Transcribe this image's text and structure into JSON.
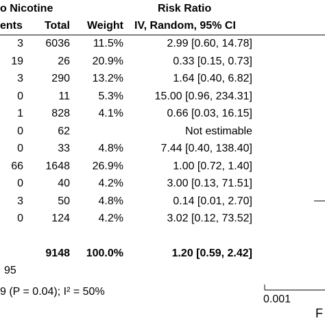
{
  "header": {
    "group_title": "o Nicotine",
    "risk_ratio_title": "Risk Ratio",
    "col_events": "ents",
    "col_total": "Total",
    "col_weight": "Weight",
    "col_method": "IV, Random, 95% CI"
  },
  "rows": [
    {
      "events": "3",
      "total": "6036",
      "weight": "11.5%",
      "ci": "2.99 [0.60, 14.78]"
    },
    {
      "events": "19",
      "total": "26",
      "weight": "20.9%",
      "ci": "0.33 [0.15, 0.73]"
    },
    {
      "events": "3",
      "total": "290",
      "weight": "13.2%",
      "ci": "1.64 [0.40, 6.82]"
    },
    {
      "events": "0",
      "total": "11",
      "weight": "5.3%",
      "ci": "15.00 [0.96, 234.31]"
    },
    {
      "events": "1",
      "total": "828",
      "weight": "4.1%",
      "ci": "0.66 [0.03, 16.15]"
    },
    {
      "events": "0",
      "total": "62",
      "weight": "",
      "ci": "Not estimable"
    },
    {
      "events": "0",
      "total": "33",
      "weight": "4.8%",
      "ci": "7.44 [0.40, 138.40]"
    },
    {
      "events": "66",
      "total": "1648",
      "weight": "26.9%",
      "ci": "1.00 [0.72, 1.40]"
    },
    {
      "events": "0",
      "total": "40",
      "weight": "4.2%",
      "ci": "3.00 [0.13, 71.51]"
    },
    {
      "events": "3",
      "total": "50",
      "weight": "4.8%",
      "ci": "0.14 [0.01, 2.70]"
    },
    {
      "events": "0",
      "total": "124",
      "weight": "4.2%",
      "ci": "3.02 [0.12, 73.52]"
    }
  ],
  "total_row": {
    "total": "9148",
    "weight": "100.0%",
    "ci": "1.20 [0.59, 2.42]"
  },
  "events_total": "95",
  "heterogeneity": "9 (P = 0.04); I² = 50%",
  "axis": {
    "tick_left": "0.001",
    "edge_text": "F"
  },
  "chart_data": {
    "type": "table",
    "title": "Risk Ratio",
    "columns": [
      "Events",
      "Total",
      "Weight",
      "Risk Ratio IV, Random, 95% CI"
    ],
    "rows": [
      [
        "3",
        "6036",
        "11.5%",
        "2.99 [0.60, 14.78]"
      ],
      [
        "19",
        "26",
        "20.9%",
        "0.33 [0.15, 0.73]"
      ],
      [
        "3",
        "290",
        "13.2%",
        "1.64 [0.40, 6.82]"
      ],
      [
        "0",
        "11",
        "5.3%",
        "15.00 [0.96, 234.31]"
      ],
      [
        "1",
        "828",
        "4.1%",
        "0.66 [0.03, 16.15]"
      ],
      [
        "0",
        "62",
        "",
        "Not estimable"
      ],
      [
        "0",
        "33",
        "4.8%",
        "7.44 [0.40, 138.40]"
      ],
      [
        "66",
        "1648",
        "26.9%",
        "1.00 [0.72, 1.40]"
      ],
      [
        "0",
        "40",
        "4.2%",
        "3.00 [0.13, 71.51]"
      ],
      [
        "3",
        "50",
        "4.8%",
        "0.14 [0.01, 2.70]"
      ],
      [
        "0",
        "124",
        "4.2%",
        "3.02 [0.12, 73.52]"
      ]
    ],
    "total": {
      "events": "95",
      "total": "9148",
      "weight": "100.0%",
      "ci": "1.20 [0.59, 2.42]"
    },
    "x_scale": "log",
    "x_tick_visible": 0.001
  },
  "colors": {
    "text": "#000000",
    "line": "#000000",
    "background": "#ffffff"
  }
}
